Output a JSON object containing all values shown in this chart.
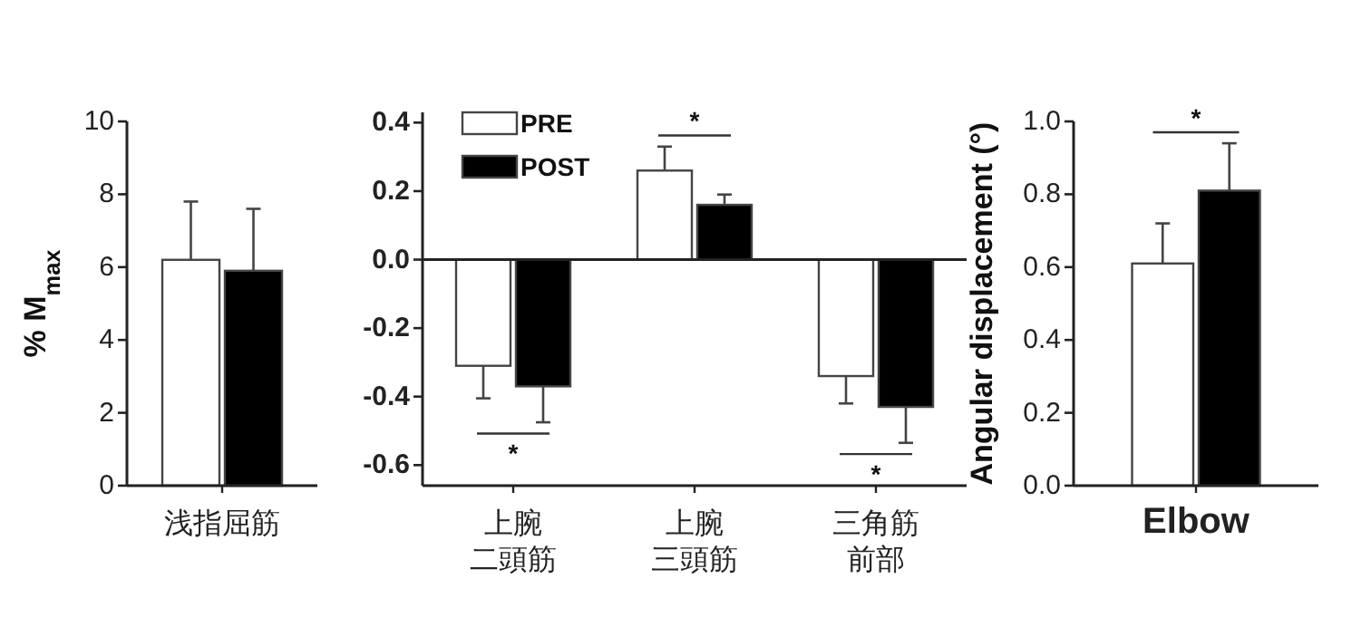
{
  "chart_data": [
    {
      "type": "bar",
      "ylabel": "% M$_{max}$",
      "categories": [
        "浅指屈筋"
      ],
      "ylim": [
        0,
        10
      ],
      "yticks": [
        0,
        2,
        4,
        6,
        8,
        10
      ],
      "series": [
        {
          "color": "#ffffff",
          "values": [
            6.2
          ],
          "errors": [
            1.6
          ]
        },
        {
          "color": "#000000",
          "values": [
            5.9
          ],
          "errors": [
            1.7
          ]
        }
      ]
    },
    {
      "type": "bar",
      "categories": [
        "上腕二頭筋",
        "上腕三頭筋",
        "三角筋前部"
      ],
      "ylim": [
        -0.66,
        0.43
      ],
      "yticks": [
        {
          "value": 0.4,
          "label": "0.4"
        },
        {
          "value": 0.2,
          "label": "0.2"
        },
        {
          "value": 0,
          "label": "0.0"
        },
        {
          "value": -0.2,
          "label": "-0.2"
        },
        {
          "value": -0.4,
          "label": "-0.4"
        },
        {
          "value": -0.6,
          "label": "-0.6"
        }
      ],
      "legend": "top left",
      "annotations": [
        "*",
        "*",
        "*"
      ],
      "series": [
        {
          "name": "PRE",
          "color": "#ffffff",
          "values": [
            -0.31,
            0.26,
            -0.34
          ],
          "errors": [
            [
              -0.405,
              -0.31
            ],
            [
              0.26,
              0.33
            ],
            [
              -0.42,
              -0.34
            ]
          ]
        },
        {
          "name": "POST",
          "color": "#000000",
          "values": [
            -0.37,
            0.16,
            -0.43
          ],
          "errors": [
            [
              -0.475,
              -0.37
            ],
            [
              0.16,
              0.19
            ],
            [
              -0.535,
              -0.43
            ]
          ]
        }
      ]
    },
    {
      "type": "bar",
      "ylabel": "Angular displacement (°)",
      "categories": [
        "Elbow"
      ],
      "ylim": [
        0,
        1
      ],
      "yticks": [
        {
          "value": 0,
          "label": "0.0"
        },
        {
          "value": 0.2,
          "label": "0.2"
        },
        {
          "value": 0.4,
          "label": "0.4"
        },
        {
          "value": 0.6,
          "label": "0.6"
        },
        {
          "value": 0.8,
          "label": "0.8"
        },
        {
          "value": 1,
          "label": "1.0"
        }
      ],
      "annotations": [
        "*"
      ],
      "series": [
        {
          "color": "#ffffff",
          "values": [
            0.61
          ],
          "errors": [
            0.11
          ]
        },
        {
          "color": "#000000",
          "values": [
            0.81
          ],
          "errors": [
            0.13
          ]
        }
      ]
    }
  ]
}
